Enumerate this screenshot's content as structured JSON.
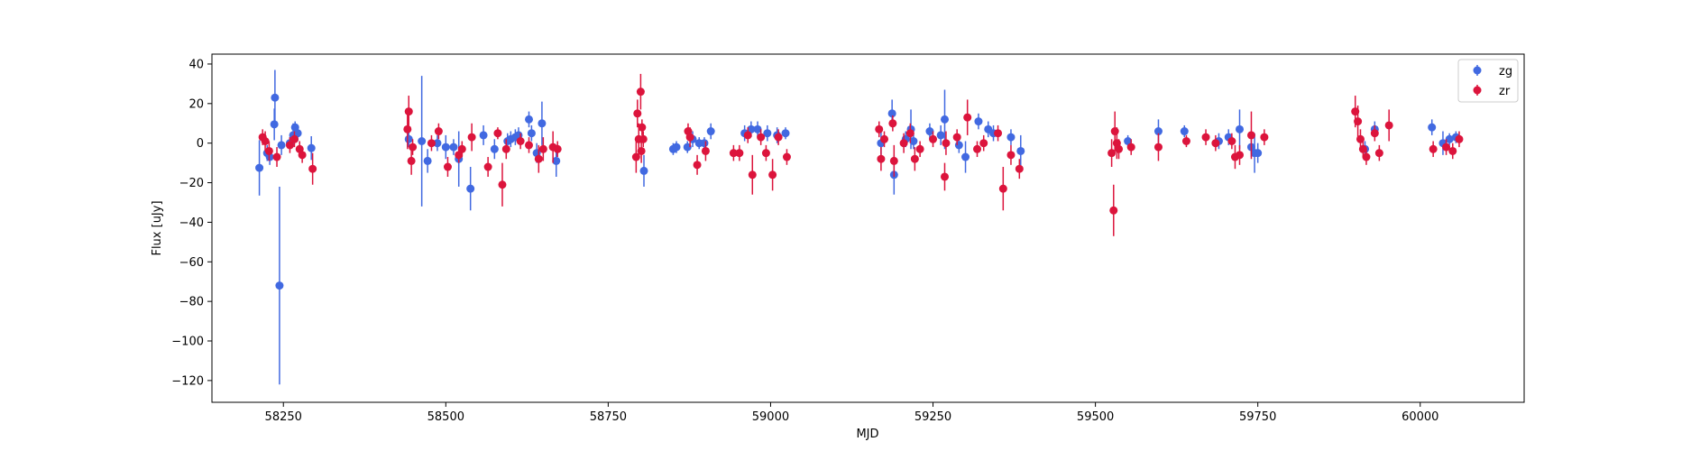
{
  "chart_data": {
    "type": "scatter",
    "title": "",
    "xlabel": "MJD",
    "ylabel": "Flux [uJy]",
    "xlim": [
      58140,
      60160
    ],
    "ylim": [
      -131,
      45
    ],
    "xticks": [
      58250,
      58500,
      58750,
      59000,
      59250,
      59500,
      59750,
      60000
    ],
    "yticks": [
      40,
      20,
      0,
      -20,
      -40,
      -60,
      -80,
      -100,
      -120
    ],
    "xtick_labels": [
      "58250",
      "58500",
      "58750",
      "59000",
      "59250",
      "59500",
      "59750",
      "60000"
    ],
    "ytick_labels": [
      "40",
      "20",
      "0",
      "−20",
      "−40",
      "−60",
      "−80",
      "−100",
      "−120"
    ],
    "grid": false,
    "legend_position": "top-right",
    "series": [
      {
        "name": "zg",
        "color": "#4169e1",
        "points": [
          [
            58213,
            -12.5,
            14
          ],
          [
            58225,
            -5,
            4
          ],
          [
            58229,
            -7,
            4
          ],
          [
            58236,
            9.5,
            8
          ],
          [
            58237,
            23,
            14
          ],
          [
            58244,
            -72,
            50
          ],
          [
            58247,
            -1,
            5
          ],
          [
            58260,
            0,
            3
          ],
          [
            58265,
            4,
            6
          ],
          [
            58268,
            8,
            3
          ],
          [
            58272,
            5,
            4
          ],
          [
            58293,
            -2.5,
            6
          ],
          [
            58443,
            2,
            4
          ],
          [
            58463,
            1,
            33
          ],
          [
            58472,
            -9,
            6
          ],
          [
            58487,
            0,
            4
          ],
          [
            58500,
            -2,
            6
          ],
          [
            58512,
            -2,
            4
          ],
          [
            58520,
            -8,
            14
          ],
          [
            58538,
            -23,
            11
          ],
          [
            58558,
            4,
            5
          ],
          [
            58575,
            -3,
            5
          ],
          [
            58595,
            1,
            4
          ],
          [
            58600,
            2,
            4
          ],
          [
            58607,
            3,
            4
          ],
          [
            58612,
            4,
            4
          ],
          [
            58628,
            12,
            4
          ],
          [
            58632,
            5,
            4
          ],
          [
            58640,
            -5,
            5
          ],
          [
            58648,
            10,
            11
          ],
          [
            58670,
            -9,
            8
          ],
          [
            58805,
            -14,
            8
          ],
          [
            58850,
            -3,
            3
          ],
          [
            58855,
            -2,
            3
          ],
          [
            58872,
            -2,
            3
          ],
          [
            58880,
            2,
            4
          ],
          [
            58890,
            0,
            3
          ],
          [
            58898,
            0,
            3
          ],
          [
            58908,
            6,
            4
          ],
          [
            58960,
            5,
            4
          ],
          [
            58970,
            7,
            4
          ],
          [
            58980,
            7,
            4
          ],
          [
            58995,
            5,
            4
          ],
          [
            59010,
            4,
            4
          ],
          [
            59023,
            5,
            3
          ],
          [
            59170,
            0,
            6
          ],
          [
            59187,
            15,
            7
          ],
          [
            59190,
            -16,
            10
          ],
          [
            59208,
            2,
            4
          ],
          [
            59216,
            7,
            10
          ],
          [
            59220,
            1,
            4
          ],
          [
            59245,
            6,
            4
          ],
          [
            59262,
            4,
            5
          ],
          [
            59268,
            12,
            15
          ],
          [
            59290,
            -1,
            4
          ],
          [
            59300,
            -7,
            8
          ],
          [
            59320,
            11,
            4
          ],
          [
            59335,
            7,
            4
          ],
          [
            59343,
            5,
            4
          ],
          [
            59370,
            3,
            4
          ],
          [
            59385,
            -4,
            8
          ],
          [
            59550,
            1,
            3
          ],
          [
            59597,
            6,
            6
          ],
          [
            59637,
            6,
            3
          ],
          [
            59690,
            1,
            4
          ],
          [
            59705,
            3,
            4
          ],
          [
            59722,
            7,
            10
          ],
          [
            59740,
            -2,
            5
          ],
          [
            59745,
            -5,
            10
          ],
          [
            59750,
            -5,
            5
          ],
          [
            59915,
            -3,
            4
          ],
          [
            59930,
            7,
            4
          ],
          [
            60018,
            8,
            4
          ],
          [
            60035,
            0,
            6
          ],
          [
            60045,
            2,
            3
          ],
          [
            60055,
            3,
            3
          ]
        ]
      },
      {
        "name": "zr",
        "color": "#dc143c",
        "points": [
          [
            58218,
            3,
            4
          ],
          [
            58222,
            1,
            5
          ],
          [
            58228,
            -4,
            5
          ],
          [
            58240,
            -7,
            5
          ],
          [
            58260,
            -1,
            4
          ],
          [
            58267,
            2,
            4
          ],
          [
            58275,
            -3,
            4
          ],
          [
            58279,
            -6,
            4
          ],
          [
            58295,
            -13,
            8
          ],
          [
            58441,
            7,
            10
          ],
          [
            58443,
            16,
            8
          ],
          [
            58447,
            -9,
            7
          ],
          [
            58449,
            -2,
            4
          ],
          [
            58478,
            0,
            4
          ],
          [
            58489,
            6,
            4
          ],
          [
            58503,
            -12,
            5
          ],
          [
            58520,
            -6,
            4
          ],
          [
            58525,
            -3,
            4
          ],
          [
            58540,
            3,
            7
          ],
          [
            58565,
            -12,
            5
          ],
          [
            58580,
            5,
            3
          ],
          [
            58587,
            -21,
            11
          ],
          [
            58593,
            -3,
            5
          ],
          [
            58615,
            1,
            4
          ],
          [
            58628,
            -1,
            4
          ],
          [
            58643,
            -8,
            7
          ],
          [
            58650,
            -3,
            6
          ],
          [
            58665,
            -2,
            8
          ],
          [
            58672,
            -3,
            4
          ],
          [
            58793,
            -7,
            8
          ],
          [
            58795,
            15,
            7
          ],
          [
            58797,
            2,
            8
          ],
          [
            58800,
            26,
            9
          ],
          [
            58801,
            -4,
            6
          ],
          [
            58802,
            8,
            4
          ],
          [
            58804,
            2,
            4
          ],
          [
            58873,
            6,
            4
          ],
          [
            58876,
            3,
            5
          ],
          [
            58887,
            -11,
            5
          ],
          [
            58900,
            -4,
            5
          ],
          [
            58943,
            -5,
            4
          ],
          [
            58952,
            -5,
            4
          ],
          [
            58965,
            4,
            4
          ],
          [
            58972,
            -16,
            10
          ],
          [
            58985,
            3,
            4
          ],
          [
            58993,
            -5,
            4
          ],
          [
            59003,
            -16,
            8
          ],
          [
            59012,
            3,
            4
          ],
          [
            59025,
            -7,
            4
          ],
          [
            59167,
            7,
            4
          ],
          [
            59170,
            -8,
            6
          ],
          [
            59175,
            2,
            4
          ],
          [
            59188,
            10,
            4
          ],
          [
            59190,
            -9,
            8
          ],
          [
            59205,
            0,
            5
          ],
          [
            59215,
            5,
            5
          ],
          [
            59222,
            -8,
            6
          ],
          [
            59230,
            -3,
            4
          ],
          [
            59250,
            2,
            4
          ],
          [
            59268,
            -17,
            7
          ],
          [
            59270,
            0,
            6
          ],
          [
            59287,
            3,
            4
          ],
          [
            59303,
            13,
            9
          ],
          [
            59318,
            -3,
            4
          ],
          [
            59328,
            0,
            4
          ],
          [
            59350,
            5,
            4
          ],
          [
            59358,
            -23,
            11
          ],
          [
            59370,
            -6,
            5
          ],
          [
            59383,
            -13,
            5
          ],
          [
            59525,
            -5,
            7
          ],
          [
            59528,
            -34,
            13
          ],
          [
            59530,
            6,
            10
          ],
          [
            59533,
            0,
            8
          ],
          [
            59536,
            -3,
            5
          ],
          [
            59555,
            -2,
            4
          ],
          [
            59597,
            -2,
            7
          ],
          [
            59640,
            1,
            3
          ],
          [
            59670,
            3,
            4
          ],
          [
            59685,
            0,
            4
          ],
          [
            59710,
            1,
            4
          ],
          [
            59715,
            -7,
            6
          ],
          [
            59722,
            -6,
            5
          ],
          [
            59740,
            4,
            12
          ],
          [
            59760,
            3,
            4
          ],
          [
            59900,
            16,
            8
          ],
          [
            59904,
            11,
            8
          ],
          [
            59908,
            2,
            5
          ],
          [
            59912,
            -3,
            4
          ],
          [
            59917,
            -7,
            4
          ],
          [
            59930,
            5,
            4
          ],
          [
            59937,
            -5,
            4
          ],
          [
            59952,
            9,
            8
          ],
          [
            60020,
            -3,
            4
          ],
          [
            60040,
            -2,
            4
          ],
          [
            60050,
            -4,
            4
          ],
          [
            60060,
            2,
            4
          ]
        ]
      }
    ]
  }
}
